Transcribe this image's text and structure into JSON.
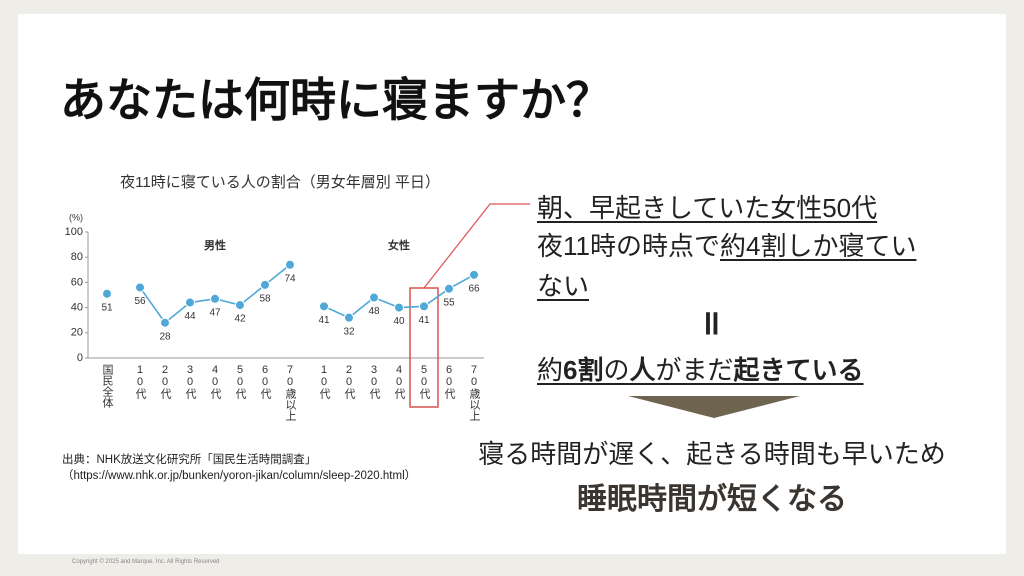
{
  "title": "あなたは何時に寝ますか？",
  "chart_data": {
    "type": "line",
    "title": "夜11時に寝ている人の割合（男女年層別 平日）",
    "y_unit": "(%)",
    "ylim": [
      0,
      100
    ],
    "yticks": [
      0,
      20,
      40,
      60,
      80,
      100
    ],
    "overall": {
      "category": "国民全体",
      "value": 51,
      "color": "#4fa8d8"
    },
    "series": [
      {
        "name": "男性",
        "color": "#4fa8d8",
        "categories": [
          "10代",
          "20代",
          "30代",
          "40代",
          "50代",
          "60代",
          "70歳以上"
        ],
        "values": [
          56,
          28,
          44,
          47,
          42,
          58,
          74
        ]
      },
      {
        "name": "女性",
        "color": "#4fa8d8",
        "categories": [
          "10代",
          "20代",
          "30代",
          "40代",
          "50代",
          "60代",
          "70歳以上"
        ],
        "values": [
          41,
          32,
          48,
          40,
          41,
          55,
          66
        ]
      }
    ]
  },
  "source": [
    "出典：NHK放送文化研究所「国民生活時間調査」",
    "（https://www.nhk.or.jp/bunken/yoron-jikan/column/sleep-2020.html）"
  ],
  "callout": {
    "line1": "朝、早起きしていた女性50代",
    "line2a": "夜11時の時点で",
    "line2b": "約4割しか寝ていない",
    "equals": "॥",
    "line3": [
      "約",
      "6割",
      "の",
      "人",
      "がまだ",
      "起きている"
    ]
  },
  "conclusion": {
    "line1": "寝る時間が遅く、起きる時間も早いため",
    "line2": "睡眠時間が短くなる"
  },
  "copyright": "Copyright © 2025 and Marque, Inc. All Rights Reserved"
}
